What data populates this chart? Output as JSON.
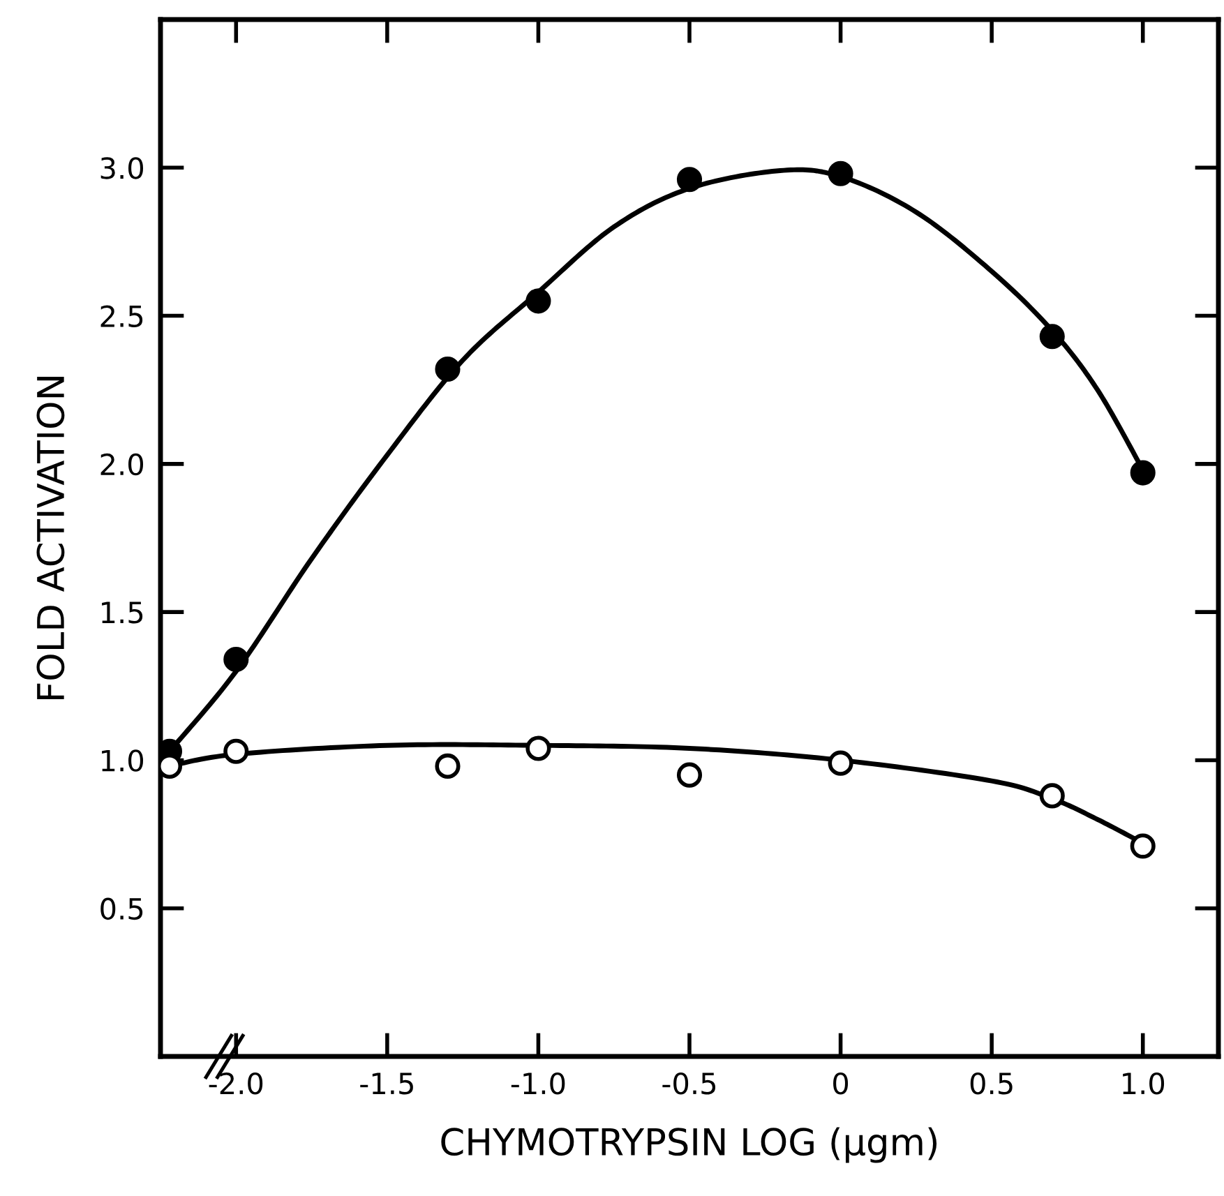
{
  "chart_data": {
    "type": "scatter",
    "xlabel": "CHYMOTRYPSIN LOG (μgm)",
    "ylabel": "FOLD ACTIVATION",
    "xlim": [
      -2.25,
      1.25
    ],
    "ylim": [
      0,
      3.5
    ],
    "xticks": [
      {
        "value": -2.0,
        "label": "-2.0"
      },
      {
        "value": -1.5,
        "label": "-1.5"
      },
      {
        "value": -1.0,
        "label": "-1.0"
      },
      {
        "value": -0.5,
        "label": "-0.5"
      },
      {
        "value": 0,
        "label": "0"
      },
      {
        "value": 0.5,
        "label": "0.5"
      },
      {
        "value": 1.0,
        "label": "1.0"
      }
    ],
    "yticks": [
      {
        "value": 0.5,
        "label": "0.5"
      },
      {
        "value": 1.0,
        "label": "1.0"
      },
      {
        "value": 1.5,
        "label": "1.5"
      },
      {
        "value": 2.0,
        "label": "2.0"
      },
      {
        "value": 2.5,
        "label": "2.5"
      },
      {
        "value": 3.0,
        "label": "3.0"
      }
    ],
    "grid": false,
    "legend": false,
    "series": [
      {
        "marker": "circle",
        "color": "#000000",
        "x": [
          -2.22,
          -2.0,
          -1.3,
          -1.0,
          -0.5,
          0.0,
          0.7,
          1.0
        ],
        "values": [
          1.03,
          1.34,
          2.32,
          2.55,
          2.96,
          2.98,
          2.43,
          1.97
        ]
      },
      {
        "marker": "circle",
        "color": "#ffffff",
        "x": [
          -2.22,
          -2.0,
          -1.3,
          -1.0,
          -0.5,
          0.0,
          0.7,
          1.0
        ],
        "values": [
          0.98,
          1.03,
          0.98,
          1.04,
          0.95,
          0.99,
          0.88,
          0.71
        ]
      },
      {
        "type": "line",
        "color": "#000000",
        "line_style": "solid",
        "x": [
          -2.22,
          -2.0,
          -1.75,
          -1.5,
          -1.25,
          -1.0,
          -0.75,
          -0.5,
          -0.2,
          0.0,
          0.25,
          0.5,
          0.7,
          0.85,
          1.0
        ],
        "values": [
          1.03,
          1.3,
          1.68,
          2.03,
          2.35,
          2.58,
          2.8,
          2.93,
          2.99,
          2.97,
          2.85,
          2.65,
          2.45,
          2.25,
          1.98
        ]
      },
      {
        "type": "line",
        "color": "#000000",
        "line_style": "solid",
        "x": [
          -2.22,
          -2.0,
          -1.5,
          -1.0,
          -0.5,
          0.0,
          0.5,
          0.7,
          0.85,
          1.0
        ],
        "values": [
          0.98,
          1.02,
          1.05,
          1.05,
          1.04,
          1.0,
          0.93,
          0.87,
          0.8,
          0.72
        ]
      }
    ]
  }
}
